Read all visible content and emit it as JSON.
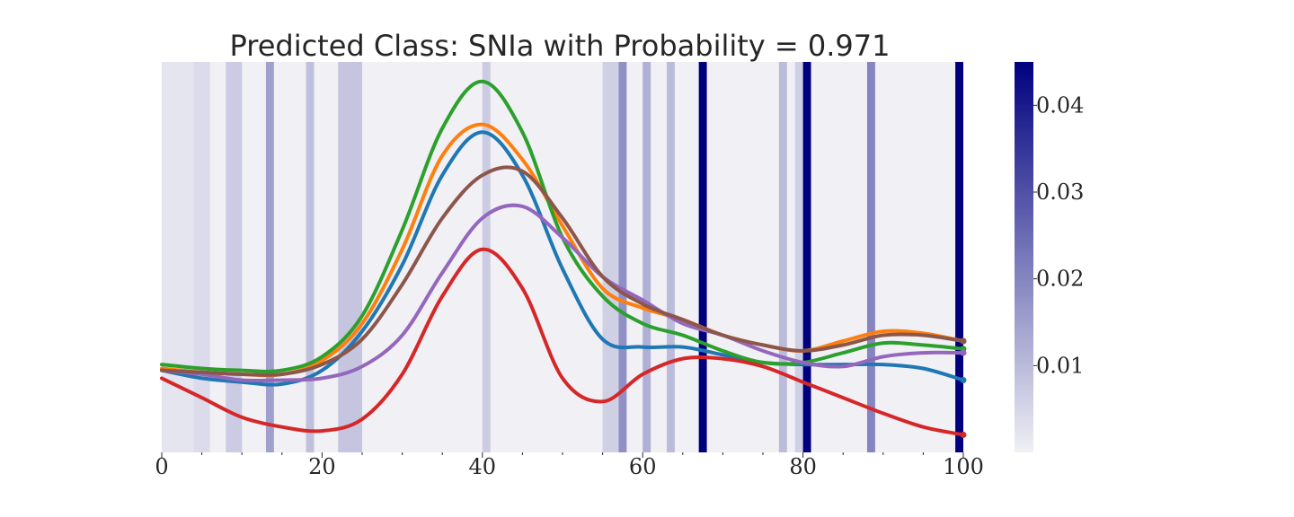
{
  "chart_data": {
    "type": "line",
    "title": "Predicted Class: SNIa with Probability = 0.971",
    "xlabel": "",
    "ylabel": "",
    "xlim": [
      0,
      100
    ],
    "ylim": [
      0,
      1
    ],
    "grid": false,
    "legend": "none",
    "x_ticks": [
      0,
      20,
      40,
      60,
      80,
      100
    ],
    "x_tick_labels": [
      "0",
      "20",
      "40",
      "60",
      "80",
      "100"
    ],
    "attention": {
      "colormap": [
        "#f0f0f5",
        "#00007f"
      ],
      "vmin": 0.0,
      "vmax": 0.045,
      "colorbar_ticks": [
        0.01,
        0.02,
        0.03,
        0.04
      ],
      "colorbar_tick_labels": [
        "0.01",
        "0.02",
        "0.03",
        "0.04"
      ],
      "x_start": [
        0,
        4,
        8,
        13,
        18,
        22,
        40,
        55,
        57,
        60,
        63,
        67,
        77,
        79,
        80,
        88,
        99
      ],
      "x_end": [
        4,
        6,
        10,
        14,
        19,
        25,
        41,
        57,
        58,
        61,
        64,
        68,
        78,
        80,
        81,
        89,
        100
      ],
      "weights": [
        0.002,
        0.004,
        0.007,
        0.015,
        0.009,
        0.008,
        0.007,
        0.006,
        0.018,
        0.012,
        0.01,
        0.045,
        0.01,
        0.006,
        0.045,
        0.02,
        0.045
      ]
    },
    "x": [
      0,
      5,
      10,
      15,
      20,
      25,
      30,
      35,
      40,
      45,
      50,
      55,
      60,
      65,
      70,
      75,
      80,
      85,
      90,
      95,
      100
    ],
    "series": [
      {
        "color": "#1f77b4",
        "values": [
          0.21,
          0.19,
          0.18,
          0.175,
          0.21,
          0.31,
          0.48,
          0.71,
          0.82,
          0.71,
          0.47,
          0.29,
          0.27,
          0.27,
          0.25,
          0.23,
          0.225,
          0.225,
          0.225,
          0.215,
          0.185
        ]
      },
      {
        "color": "#ff7f0e",
        "values": [
          0.215,
          0.205,
          0.2,
          0.2,
          0.235,
          0.33,
          0.52,
          0.76,
          0.84,
          0.75,
          0.58,
          0.42,
          0.37,
          0.34,
          0.3,
          0.275,
          0.26,
          0.285,
          0.31,
          0.305,
          0.285
        ]
      },
      {
        "color": "#2ca02c",
        "values": [
          0.225,
          0.215,
          0.21,
          0.21,
          0.245,
          0.35,
          0.57,
          0.83,
          0.95,
          0.82,
          0.55,
          0.4,
          0.33,
          0.3,
          0.26,
          0.23,
          0.23,
          0.255,
          0.28,
          0.275,
          0.265
        ]
      },
      {
        "color": "#d62728",
        "values": [
          0.19,
          0.14,
          0.09,
          0.065,
          0.055,
          0.085,
          0.2,
          0.4,
          0.52,
          0.42,
          0.19,
          0.13,
          0.2,
          0.24,
          0.24,
          0.22,
          0.18,
          0.14,
          0.1,
          0.065,
          0.045
        ]
      },
      {
        "color": "#9467bd",
        "values": [
          0.21,
          0.2,
          0.185,
          0.185,
          0.19,
          0.22,
          0.3,
          0.46,
          0.6,
          0.63,
          0.55,
          0.45,
          0.39,
          0.33,
          0.3,
          0.26,
          0.23,
          0.22,
          0.245,
          0.255,
          0.255
        ]
      },
      {
        "color": "#8c564b",
        "values": [
          0.21,
          0.205,
          0.2,
          0.2,
          0.225,
          0.29,
          0.43,
          0.6,
          0.71,
          0.72,
          0.6,
          0.45,
          0.38,
          0.34,
          0.3,
          0.275,
          0.26,
          0.275,
          0.3,
          0.3,
          0.285
        ]
      }
    ]
  }
}
